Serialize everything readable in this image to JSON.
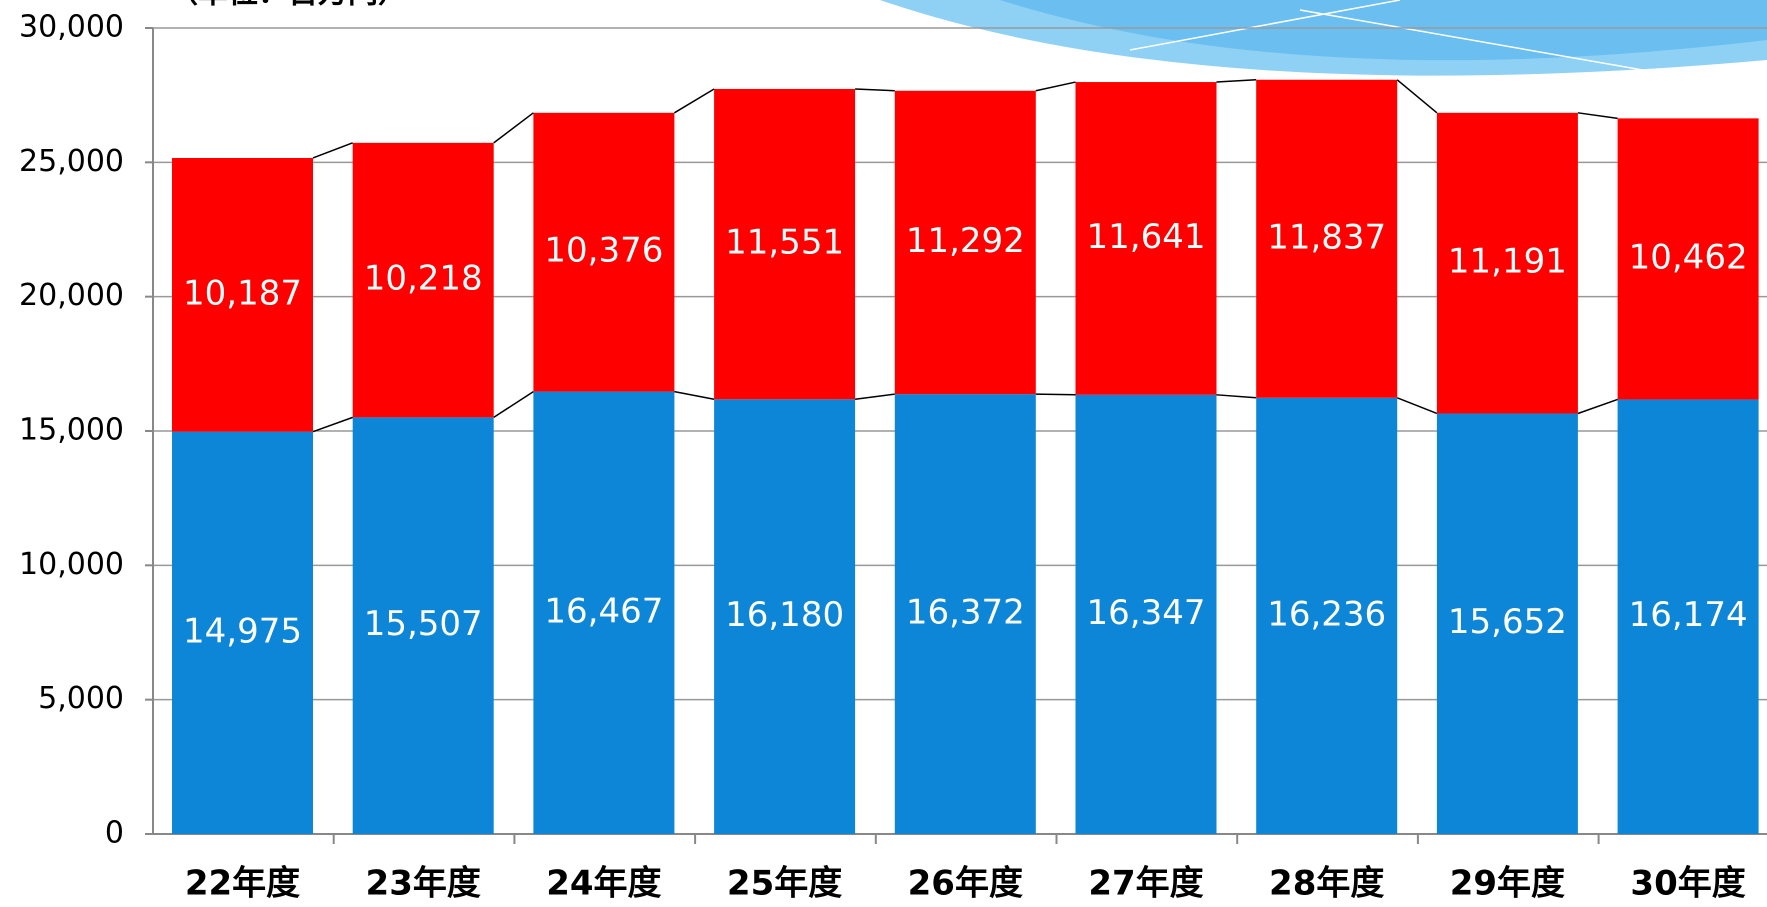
{
  "chart_data": {
    "type": "stacked-bar",
    "subtitle": "（単位：百万円）",
    "categories": [
      "22年度",
      "23年度",
      "24年度",
      "25年度",
      "26年度",
      "27年度",
      "28年度",
      "29年度",
      "30年度"
    ],
    "series": [
      {
        "color": "#0e86d8",
        "values": [
          14975,
          15507,
          16467,
          16180,
          16372,
          16347,
          16236,
          15652,
          16174
        ],
        "value_labels": [
          "14,975",
          "15,507",
          "16,467",
          "16,180",
          "16,372",
          "16,347",
          "16,236",
          "15,652",
          "16,174"
        ]
      },
      {
        "color": "#ff0000",
        "values": [
          10187,
          10218,
          10376,
          11551,
          11292,
          11641,
          11837,
          11191,
          10462
        ],
        "value_labels": [
          "10,187",
          "10,218",
          "10,376",
          "11,551",
          "11,292",
          "11,641",
          "11,837",
          "11,191",
          "10,462"
        ]
      }
    ],
    "ylim": [
      0,
      30000
    ],
    "yticks": [
      0,
      {
        "value": 5000,
        "label": "5,000"
      },
      {
        "value": 10000,
        "label": "10,000"
      },
      {
        "value": 15000,
        "label": "15,000"
      },
      {
        "value": 20000,
        "label": "20,000"
      },
      {
        "value": 25000,
        "label": "25,000"
      },
      {
        "value": 30000,
        "label": "30,000"
      }
    ],
    "grid": true
  }
}
